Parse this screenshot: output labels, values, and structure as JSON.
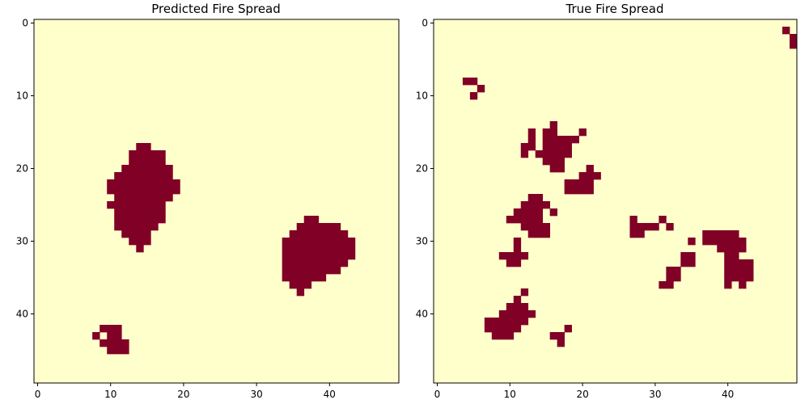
{
  "chart_data": [
    {
      "type": "heatmap",
      "title": "Predicted Fire Spread",
      "grid_size": [
        50,
        50
      ],
      "xlim": [
        -0.5,
        49.5
      ],
      "ylim": [
        49.5,
        -0.5
      ],
      "xticks": [
        0,
        10,
        20,
        30,
        40
      ],
      "yticks": [
        0,
        10,
        20,
        30,
        40
      ],
      "colormap": {
        "0": "#ffffcc",
        "1": "#800026"
      },
      "fire_cells_by_row": {
        "17": [
          [
            14,
            15
          ]
        ],
        "18": [
          [
            13,
            17
          ]
        ],
        "19": [
          [
            13,
            17
          ]
        ],
        "20": [
          [
            12,
            18
          ]
        ],
        "21": [
          [
            11,
            18
          ]
        ],
        "22": [
          [
            10,
            19
          ]
        ],
        "23": [
          [
            10,
            19
          ]
        ],
        "24": [
          [
            11,
            18
          ]
        ],
        "25": [
          [
            10,
            17
          ]
        ],
        "26": [
          [
            11,
            17
          ]
        ],
        "27": [
          [
            11,
            17
          ],
          [
            37,
            38
          ]
        ],
        "28": [
          [
            11,
            16
          ],
          [
            36,
            41
          ]
        ],
        "29": [
          [
            12,
            15
          ],
          [
            35,
            42
          ]
        ],
        "30": [
          [
            13,
            15
          ],
          [
            34,
            43
          ]
        ],
        "31": [
          [
            14,
            14
          ],
          [
            34,
            43
          ]
        ],
        "32": [
          [
            34,
            43
          ]
        ],
        "33": [
          [
            34,
            42
          ]
        ],
        "34": [
          [
            34,
            41
          ]
        ],
        "35": [
          [
            34,
            39
          ]
        ],
        "36": [
          [
            35,
            37
          ]
        ],
        "37": [
          [
            36,
            36
          ]
        ],
        "42": [
          [
            9,
            11
          ]
        ],
        "43": [
          [
            8,
            8
          ],
          [
            10,
            11
          ]
        ],
        "44": [
          [
            9,
            12
          ]
        ],
        "45": [
          [
            10,
            12
          ]
        ]
      }
    },
    {
      "type": "heatmap",
      "title": "True Fire Spread",
      "grid_size": [
        50,
        50
      ],
      "xlim": [
        -0.5,
        49.5
      ],
      "ylim": [
        49.5,
        -0.5
      ],
      "xticks": [
        0,
        10,
        20,
        30,
        40
      ],
      "yticks": [
        0,
        10,
        20,
        30,
        40
      ],
      "colormap": {
        "0": "#ffffcc",
        "1": "#800026"
      },
      "fire_cells_by_row": {
        "1": [
          [
            48,
            48
          ]
        ],
        "2": [
          [
            49,
            49
          ]
        ],
        "3": [
          [
            49,
            49
          ]
        ],
        "8": [
          [
            4,
            5
          ]
        ],
        "9": [
          [
            6,
            6
          ]
        ],
        "10": [
          [
            5,
            5
          ]
        ],
        "14": [
          [
            16,
            16
          ]
        ],
        "15": [
          [
            13,
            13
          ],
          [
            15,
            16
          ],
          [
            20,
            20
          ]
        ],
        "16": [
          [
            13,
            13
          ],
          [
            15,
            19
          ]
        ],
        "17": [
          [
            12,
            13
          ],
          [
            15,
            18
          ]
        ],
        "18": [
          [
            12,
            12
          ],
          [
            14,
            18
          ]
        ],
        "19": [
          [
            15,
            17
          ]
        ],
        "20": [
          [
            16,
            17
          ],
          [
            21,
            21
          ]
        ],
        "21": [
          [
            20,
            21
          ],
          [
            22,
            22
          ]
        ],
        "22": [
          [
            18,
            21
          ]
        ],
        "23": [
          [
            18,
            21
          ]
        ],
        "24": [
          [
            13,
            14
          ]
        ],
        "25": [
          [
            12,
            15
          ]
        ],
        "26": [
          [
            11,
            14
          ],
          [
            16,
            16
          ]
        ],
        "27": [
          [
            10,
            14
          ],
          [
            27,
            27
          ],
          [
            31,
            31
          ]
        ],
        "28": [
          [
            12,
            15
          ],
          [
            27,
            30
          ],
          [
            32,
            32
          ]
        ],
        "29": [
          [
            13,
            15
          ],
          [
            27,
            28
          ],
          [
            37,
            41
          ]
        ],
        "30": [
          [
            11,
            11
          ],
          [
            35,
            35
          ],
          [
            37,
            42
          ]
        ],
        "31": [
          [
            11,
            11
          ],
          [
            39,
            42
          ]
        ],
        "32": [
          [
            9,
            12
          ],
          [
            34,
            35
          ],
          [
            40,
            41
          ]
        ],
        "33": [
          [
            10,
            11
          ],
          [
            34,
            35
          ],
          [
            40,
            43
          ]
        ],
        "34": [
          [
            32,
            33
          ],
          [
            40,
            43
          ]
        ],
        "35": [
          [
            32,
            33
          ],
          [
            40,
            43
          ]
        ],
        "36": [
          [
            31,
            32
          ],
          [
            40,
            40
          ],
          [
            42,
            42
          ]
        ],
        "37": [
          [
            12,
            12
          ]
        ],
        "38": [
          [
            11,
            11
          ]
        ],
        "39": [
          [
            10,
            12
          ]
        ],
        "40": [
          [
            9,
            12
          ],
          [
            13,
            13
          ]
        ],
        "41": [
          [
            7,
            12
          ]
        ],
        "42": [
          [
            7,
            11
          ],
          [
            18,
            18
          ]
        ],
        "43": [
          [
            8,
            10
          ],
          [
            16,
            17
          ]
        ],
        "44": [
          [
            17,
            17
          ]
        ]
      }
    }
  ]
}
